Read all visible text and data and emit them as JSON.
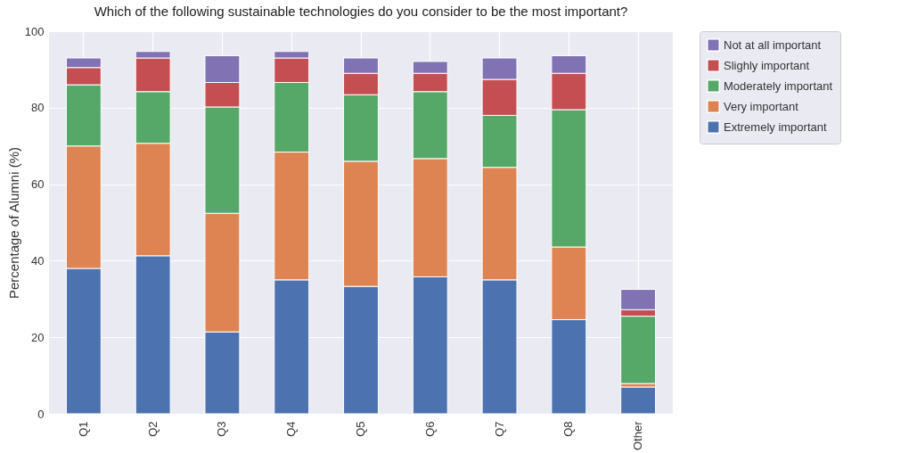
{
  "chart_data": {
    "type": "bar",
    "title": "Which of the following sustainable technologies do you consider to be the most important?",
    "ylabel": "Percentage of Alumni (%)",
    "stacked": true,
    "categories": [
      "Q1",
      "Q2",
      "Q3",
      "Q4",
      "Q5",
      "Q6",
      "Q7",
      "Q8",
      "Other"
    ],
    "series": [
      {
        "name": "Extremely important",
        "color": "#4c72b0",
        "values": [
          38,
          41.3,
          21.4,
          35,
          33.3,
          35.8,
          35,
          24.6,
          7
        ]
      },
      {
        "name": "Very important",
        "color": "#dd8452",
        "values": [
          32,
          29.4,
          31,
          33.4,
          32.7,
          30.9,
          29.4,
          19,
          0.9
        ]
      },
      {
        "name": "Moderately important",
        "color": "#55a868",
        "values": [
          16,
          13.5,
          27.8,
          18.2,
          17.4,
          17.5,
          13.6,
          35.9,
          17.6
        ]
      },
      {
        "name": "Slighly important",
        "color": "#c44e52",
        "values": [
          4.5,
          8.8,
          6.4,
          6.4,
          5.6,
          4.8,
          9.4,
          9.5,
          1.7
        ]
      },
      {
        "name": "Not at all important",
        "color": "#8172b3",
        "values": [
          2.5,
          1.7,
          7,
          1.7,
          4,
          3.1,
          5.6,
          4.6,
          5.3
        ]
      }
    ],
    "ylim": [
      0,
      100
    ],
    "yticks": [
      0,
      20,
      40,
      60,
      80,
      100
    ],
    "grid": true,
    "legend": "right"
  }
}
